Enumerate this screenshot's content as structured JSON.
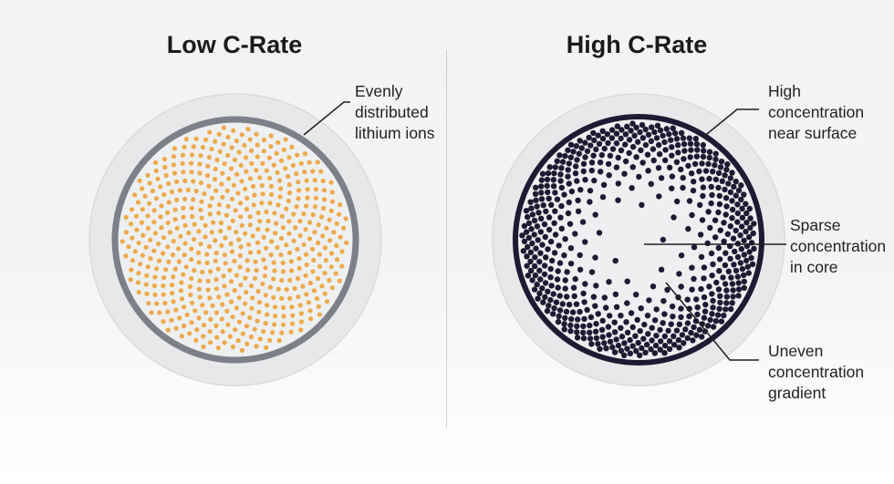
{
  "panels": [
    {
      "title": "Low C-Rate",
      "annotations": [
        {
          "lines": [
            "Evenly",
            "distributed",
            "lithium ions"
          ]
        }
      ]
    },
    {
      "title": "High C-Rate",
      "annotations": [
        {
          "lines": [
            "High",
            "concentration",
            "near surface"
          ]
        },
        {
          "lines": [
            "Sparse",
            "concentration",
            "in core"
          ]
        },
        {
          "lines": [
            "Uneven",
            "concentration",
            "gradient"
          ]
        }
      ]
    }
  ],
  "colors": {
    "low_ion": "#efa84a",
    "low_ring": "#7d8089",
    "high_ion": "#1c1b33",
    "high_ring": "#1c1b33",
    "particle_fill": "#eeeff0",
    "halo": "#e7e8ea"
  }
}
